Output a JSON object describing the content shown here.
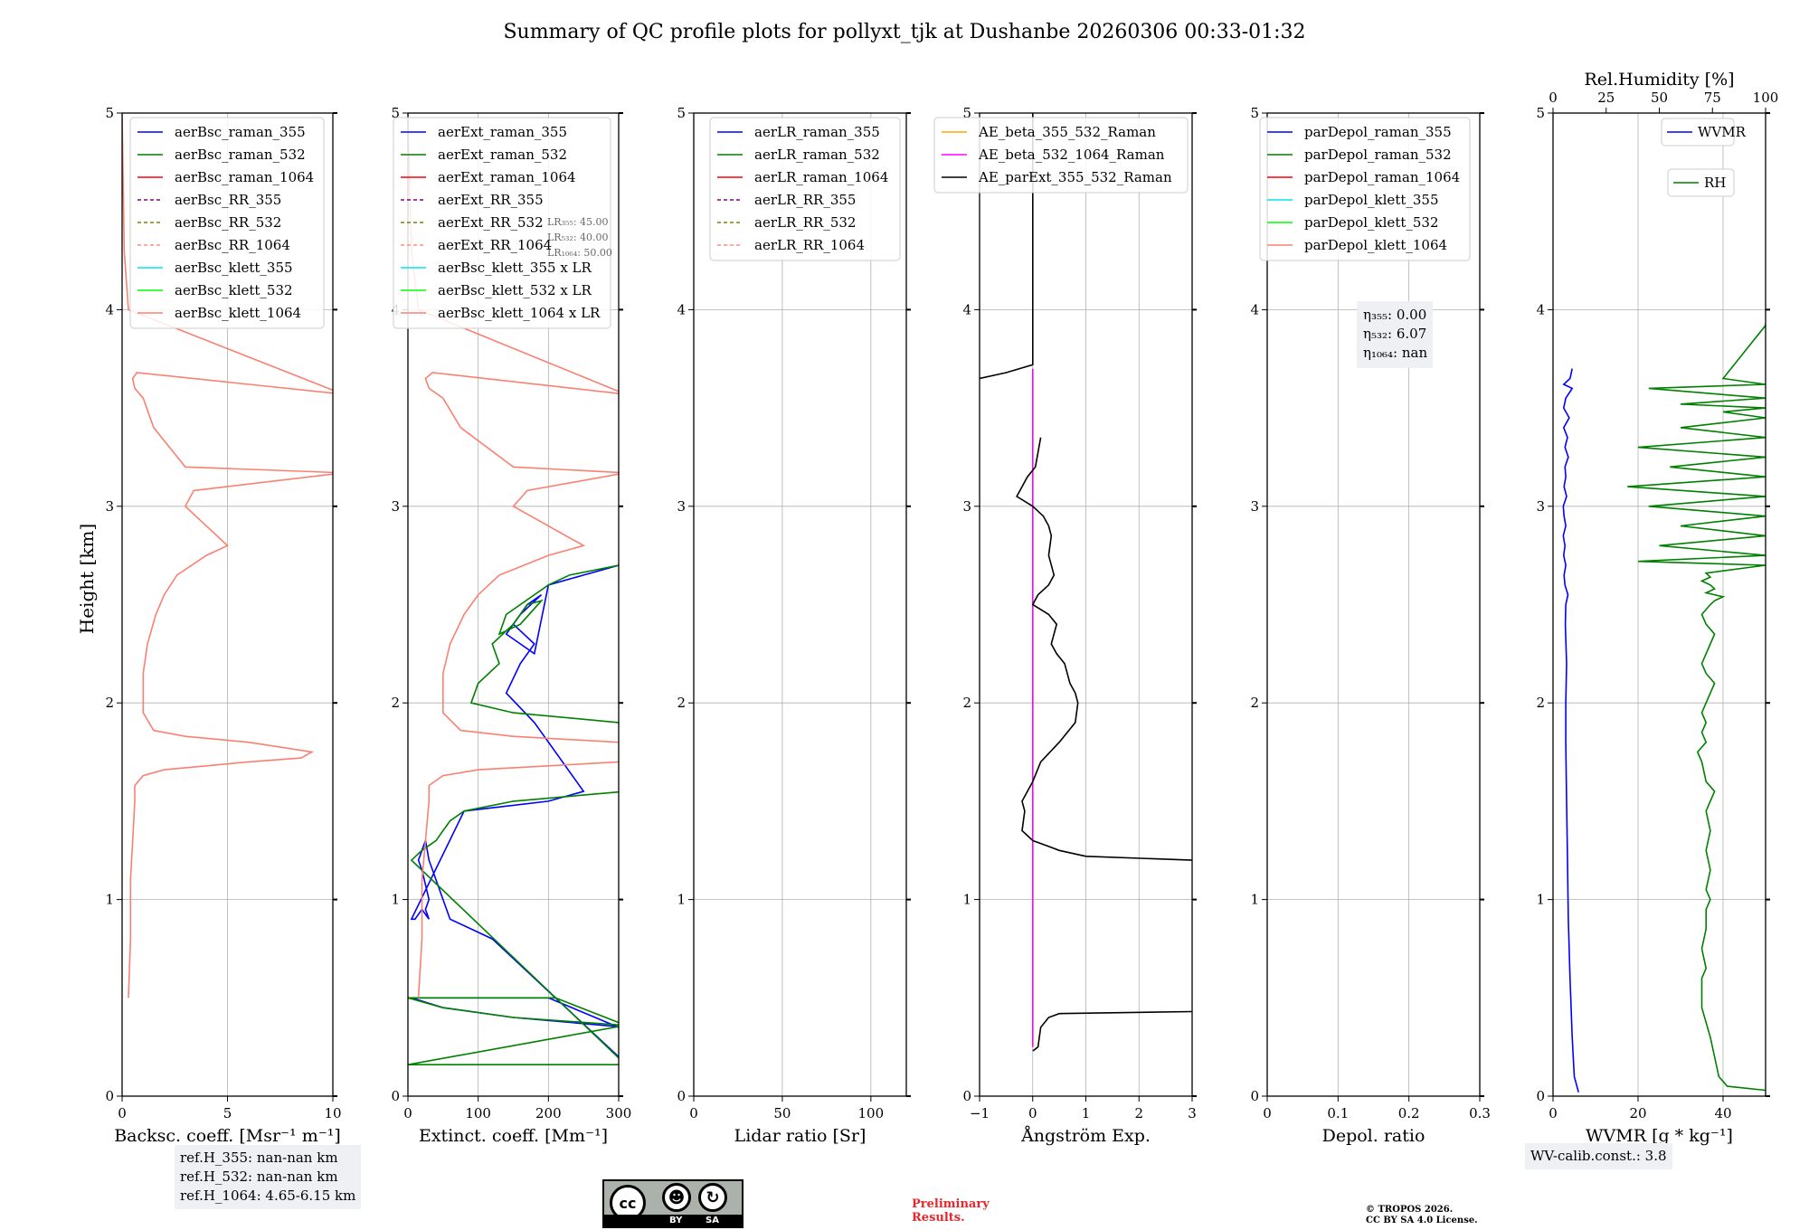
{
  "figure": {
    "title": "Summary of QC profile plots for pollyxt_tjk at Dushanbe 20260306 00:33-01:32",
    "ylabel": "Height [km]"
  },
  "chart_data": [
    {
      "id": "bsc",
      "type": "line",
      "xlabel": "Backsc. coeff. [Msr⁻¹ m⁻¹]",
      "xlim": [
        0,
        10
      ],
      "xticks": [
        0,
        5,
        10
      ],
      "ylim": [
        0,
        5
      ],
      "yticks": [
        0,
        1,
        2,
        3,
        4,
        5
      ],
      "legend": [
        "aerBsc_raman_355",
        "aerBsc_raman_532",
        "aerBsc_raman_1064",
        "aerBsc_RR_355",
        "aerBsc_RR_532",
        "aerBsc_RR_1064",
        "aerBsc_klett_355",
        "aerBsc_klett_532",
        "aerBsc_klett_1064"
      ],
      "legend_colors": [
        "#0000ff",
        "#008000",
        "#ff0000",
        "#800080",
        "#808000",
        "#ff8c8c",
        "#00e5ee",
        "#00ff00",
        "#fa8072"
      ],
      "legend_dashed": [
        false,
        false,
        false,
        true,
        true,
        true,
        false,
        false,
        false
      ],
      "series": [
        {
          "name": "aerBsc_klett_1064",
          "color": "#fa8072",
          "x": [
            0.3,
            0.4,
            0.4,
            0.5,
            0.6,
            0.6,
            1.0,
            2.0,
            4.0,
            6.0,
            8.5,
            9.0,
            6.0,
            3.0,
            1.5,
            1.0,
            1.0,
            1.2,
            1.6,
            2.0,
            2.6,
            4.0,
            5.0,
            3.0,
            3.4,
            10.5,
            3.0,
            1.5,
            1.0,
            0.6,
            0.5,
            0.7,
            10.5,
            0.3,
            0.1,
            0.0
          ],
          "y": [
            0.5,
            0.8,
            1.1,
            1.3,
            1.5,
            1.58,
            1.63,
            1.66,
            1.68,
            1.7,
            1.72,
            1.75,
            1.8,
            1.83,
            1.86,
            1.95,
            2.15,
            2.3,
            2.45,
            2.55,
            2.65,
            2.75,
            2.8,
            3.0,
            3.08,
            3.17,
            3.2,
            3.4,
            3.55,
            3.6,
            3.65,
            3.68,
            3.57,
            4.0,
            4.3,
            5.0
          ]
        }
      ]
    },
    {
      "id": "ext",
      "type": "line",
      "xlabel": "Extinct. coeff. [Mm⁻¹]",
      "xlim": [
        0,
        300
      ],
      "xticks": [
        0,
        100,
        200,
        300
      ],
      "ylim": [
        0,
        5
      ],
      "yticks": [
        0,
        1,
        2,
        3,
        4,
        5
      ],
      "legend": [
        "aerExt_raman_355",
        "aerExt_raman_532",
        "aerExt_raman_1064",
        "aerExt_RR_355",
        "aerExt_RR_532",
        "aerExt_RR_1064",
        "aerBsc_klett_355 x LR",
        "aerBsc_klett_532 x LR",
        "aerBsc_klett_1064 x LR"
      ],
      "legend_colors": [
        "#0000ff",
        "#008000",
        "#ff0000",
        "#800080",
        "#808000",
        "#ff8c8c",
        "#00e5ee",
        "#00ff00",
        "#fa8072"
      ],
      "legend_dashed": [
        false,
        false,
        false,
        true,
        true,
        true,
        false,
        false,
        false
      ],
      "lr_labels": [
        "LR₃₅₅: 45.00",
        "LR₅₃₂: 40.00",
        "LR₁₀₆₄: 50.00"
      ],
      "series": [
        {
          "name": "aerExt_raman_355",
          "color": "#0000ff",
          "x": [
            310,
            150,
            50,
            5,
            200,
            300,
            310,
            300,
            120,
            60,
            50,
            40,
            30,
            25,
            20,
            15,
            20,
            30,
            25,
            30,
            20,
            10,
            5,
            80,
            200,
            250,
            180,
            140,
            160,
            180,
            150,
            170,
            190,
            160,
            140,
            180,
            200,
            250,
            300,
            310
          ],
          "x_note": "clipped at axis limit",
          "y": [
            0.35,
            0.4,
            0.45,
            0.5,
            0.5,
            0.35,
            0.16,
            0.2,
            0.8,
            0.9,
            1.0,
            1.1,
            1.2,
            1.3,
            1.25,
            1.2,
            1.15,
            1.0,
            0.95,
            0.9,
            0.95,
            0.9,
            0.9,
            1.45,
            1.5,
            1.55,
            1.9,
            2.05,
            2.2,
            2.3,
            2.4,
            2.5,
            2.55,
            2.45,
            2.35,
            2.25,
            2.6,
            2.65,
            2.7,
            2.75
          ]
        },
        {
          "name": "aerExt_raman_532",
          "color": "#008000",
          "x": [
            310,
            150,
            50,
            0,
            210,
            310,
            0,
            310,
            5,
            20,
            40,
            50,
            60,
            80,
            150,
            310,
            300,
            150,
            90,
            100,
            130,
            120,
            150,
            170,
            190,
            160,
            130,
            140,
            200,
            230,
            300
          ],
          "y": [
            0.36,
            0.4,
            0.45,
            0.5,
            0.5,
            0.36,
            0.16,
            0.16,
            1.2,
            1.25,
            1.3,
            1.35,
            1.4,
            1.45,
            1.5,
            1.55,
            1.9,
            1.95,
            2.0,
            2.1,
            2.2,
            2.3,
            2.4,
            2.5,
            2.52,
            2.4,
            2.35,
            2.45,
            2.6,
            2.65,
            2.7
          ]
        },
        {
          "name": "aerBsc_klett_1064 x LR",
          "color": "#fa8072",
          "x": [
            15,
            20,
            20,
            25,
            30,
            30,
            50,
            100,
            200,
            300,
            310,
            310,
            300,
            150,
            75,
            50,
            50,
            60,
            80,
            100,
            130,
            200,
            250,
            150,
            170,
            310,
            150,
            75,
            50,
            30,
            25,
            35,
            310,
            15,
            5,
            0
          ],
          "y": [
            0.5,
            0.8,
            1.1,
            1.3,
            1.5,
            1.58,
            1.63,
            1.66,
            1.68,
            1.7,
            1.72,
            1.75,
            1.8,
            1.83,
            1.86,
            1.95,
            2.15,
            2.3,
            2.45,
            2.55,
            2.65,
            2.75,
            2.8,
            3.0,
            3.08,
            3.17,
            3.2,
            3.4,
            3.55,
            3.6,
            3.65,
            3.68,
            3.57,
            4.0,
            4.3,
            5.0
          ]
        }
      ]
    },
    {
      "id": "lr",
      "type": "line",
      "xlabel": "Lidar ratio [Sr]",
      "xlim": [
        0,
        120
      ],
      "xticks": [
        0,
        50,
        100
      ],
      "ylim": [
        0,
        5
      ],
      "yticks": [
        0,
        1,
        2,
        3,
        4,
        5
      ],
      "legend": [
        "aerLR_raman_355",
        "aerLR_raman_532",
        "aerLR_raman_1064",
        "aerLR_RR_355",
        "aerLR_RR_532",
        "aerLR_RR_1064"
      ],
      "legend_colors": [
        "#0000ff",
        "#008000",
        "#ff0000",
        "#800080",
        "#808000",
        "#ff8c8c"
      ],
      "legend_dashed": [
        false,
        false,
        false,
        true,
        true,
        true
      ],
      "series": []
    },
    {
      "id": "ae",
      "type": "line",
      "xlabel": "Ångström Exp.",
      "xlim": [
        -1,
        3
      ],
      "xticks": [
        -1,
        0,
        1,
        2,
        3
      ],
      "ylim": [
        0,
        5
      ],
      "yticks": [
        0,
        1,
        2,
        3,
        4,
        5
      ],
      "legend": [
        "AE_beta_355_532_Raman",
        "AE_beta_532_1064_Raman",
        "AE_parExt_355_532_Raman"
      ],
      "legend_colors": [
        "#ffa500",
        "#ff00ff",
        "#000000"
      ],
      "legend_dashed": [
        false,
        false,
        false
      ],
      "series": [
        {
          "name": "AE_beta_532_1064_Raman",
          "color": "#ff00ff",
          "x": [
            0.0,
            0.0
          ],
          "y": [
            0.25,
            3.7
          ]
        },
        {
          "name": "AE_parExt_355_532_Raman_low",
          "color": "#000000",
          "x": [
            0.0,
            0.1,
            0.15,
            0.3,
            0.5,
            3.0
          ],
          "y": [
            0.23,
            0.25,
            0.35,
            0.4,
            0.42,
            0.43
          ]
        },
        {
          "name": "AE_parExt_355_532_Raman",
          "color": "#000000",
          "x": [
            3.0,
            1.0,
            0.5,
            0.3,
            0.0,
            -0.2,
            -0.15,
            -0.2,
            -0.1,
            0.0,
            0.15,
            0.5,
            0.8,
            0.85,
            0.8,
            0.7,
            0.6,
            0.45,
            0.35,
            0.45,
            0.3,
            0.0,
            0.1,
            0.3,
            0.4,
            0.3,
            0.35,
            0.3,
            0.2,
            0.0,
            -0.3,
            -0.2,
            -0.1,
            0.05,
            0.15
          ],
          "y": [
            1.2,
            1.22,
            1.25,
            1.27,
            1.3,
            1.35,
            1.45,
            1.5,
            1.55,
            1.6,
            1.7,
            1.8,
            1.9,
            2.0,
            2.05,
            2.1,
            2.2,
            2.25,
            2.3,
            2.4,
            2.45,
            2.5,
            2.55,
            2.6,
            2.65,
            2.75,
            2.85,
            2.9,
            2.95,
            3.0,
            3.05,
            3.1,
            3.15,
            3.2,
            3.35
          ]
        },
        {
          "name": "AE_parExt_355_532_Raman_top",
          "color": "#000000",
          "x": [
            -1.0,
            -0.5,
            0.0,
            0.0
          ],
          "y": [
            3.65,
            3.68,
            3.72,
            5.0
          ]
        }
      ]
    },
    {
      "id": "depol",
      "type": "line",
      "xlabel": "Depol. ratio",
      "xlim": [
        0,
        0.3
      ],
      "xticks": [
        0.0,
        0.1,
        0.2,
        0.3
      ],
      "ylim": [
        0,
        5
      ],
      "yticks": [
        0,
        1,
        2,
        3,
        4,
        5
      ],
      "legend": [
        "parDepol_raman_355",
        "parDepol_raman_532",
        "parDepol_raman_1064",
        "parDepol_klett_355",
        "parDepol_klett_532",
        "parDepol_klett_1064"
      ],
      "legend_colors": [
        "#0000ff",
        "#008000",
        "#ff0000",
        "#00e5ee",
        "#00ff00",
        "#fa8072"
      ],
      "legend_dashed": [
        false,
        false,
        false,
        false,
        false,
        false
      ],
      "eta_labels": [
        "η₃₅₅: 0.00",
        "η₅₃₂: 6.07",
        "η₁₀₆₄: nan"
      ],
      "series": []
    },
    {
      "id": "wv",
      "type": "line",
      "xlabel": "WVMR [g * kg⁻¹]",
      "xlim": [
        0,
        50
      ],
      "xticks": [
        0,
        20,
        40
      ],
      "x2label": "Rel.Humidity [%]",
      "x2lim": [
        0,
        100
      ],
      "x2ticks": [
        0,
        25,
        50,
        75,
        100
      ],
      "ylim": [
        0,
        5
      ],
      "yticks": [
        0,
        1,
        2,
        3,
        4,
        5
      ],
      "legend": [
        "WVMR",
        "RH"
      ],
      "legend_colors": [
        "#0000ff",
        "#008000"
      ],
      "series": [
        {
          "name": "WVMR",
          "color": "#0000ff",
          "x": [
            6.0,
            5.0,
            4.5,
            4.0,
            3.6,
            3.4,
            3.2,
            3.0,
            3.0,
            3.2,
            2.9,
            3.0,
            3.5,
            2.8,
            2.6,
            3.0,
            2.5,
            2.8,
            2.4,
            3.0,
            2.6,
            2.4,
            3.2,
            2.6,
            3.0,
            2.8,
            3.6,
            2.8,
            3.4,
            2.5,
            3.8,
            2.5,
            3.0,
            4.5,
            2.5,
            4.0,
            4.5
          ],
          "y": [
            0.02,
            0.1,
            0.3,
            0.6,
            0.9,
            1.2,
            1.5,
            1.8,
            2.0,
            2.2,
            2.4,
            2.5,
            2.55,
            2.6,
            2.65,
            2.7,
            2.75,
            2.8,
            2.85,
            2.9,
            2.95,
            3.0,
            3.05,
            3.1,
            3.15,
            3.2,
            3.25,
            3.3,
            3.35,
            3.4,
            3.45,
            3.5,
            3.55,
            3.6,
            3.62,
            3.65,
            3.7
          ]
        },
        {
          "name": "RH",
          "color": "#008000",
          "x2": [
            100,
            82,
            78,
            76,
            74,
            70,
            70,
            72,
            70,
            72,
            72,
            74,
            72,
            74,
            72,
            74,
            72,
            74,
            76,
            72,
            70,
            68,
            72,
            70,
            72,
            70,
            72,
            74,
            76,
            72,
            70,
            72,
            74,
            76,
            72,
            70,
            74,
            76,
            80,
            72,
            76,
            74,
            70,
            74,
            72,
            100,
            40,
            100,
            50,
            100,
            60,
            100,
            45,
            100,
            35,
            100,
            55,
            100,
            40,
            100,
            60,
            100,
            80,
            100,
            60,
            100,
            45,
            100,
            80,
            100,
            100
          ],
          "y": [
            0.03,
            0.05,
            0.1,
            0.2,
            0.3,
            0.45,
            0.6,
            0.65,
            0.75,
            0.85,
            0.95,
            1.0,
            1.05,
            1.15,
            1.25,
            1.35,
            1.45,
            1.5,
            1.55,
            1.6,
            1.7,
            1.75,
            1.8,
            1.85,
            1.9,
            1.95,
            2.0,
            2.05,
            2.1,
            2.15,
            2.2,
            2.25,
            2.3,
            2.35,
            2.4,
            2.45,
            2.5,
            2.52,
            2.54,
            2.56,
            2.58,
            2.6,
            2.62,
            2.64,
            2.66,
            2.7,
            2.72,
            2.75,
            2.8,
            2.85,
            2.9,
            2.95,
            3.0,
            3.05,
            3.1,
            3.15,
            3.2,
            3.25,
            3.3,
            3.35,
            3.4,
            3.45,
            3.48,
            3.5,
            3.52,
            3.55,
            3.6,
            3.62,
            3.65,
            3.92,
            3.93
          ]
        }
      ]
    }
  ],
  "info": {
    "ref_lines": [
      "ref.H_355: nan-nan km",
      "ref.H_532: nan-nan km",
      "ref.H_1064: 4.65-6.15 km"
    ],
    "wv_calib": "WV-calib.const.: 3.8",
    "preliminary": [
      "Preliminary",
      "Results."
    ],
    "copyright": [
      "© TROPOS 2026.",
      "CC BY SA 4.0 License."
    ],
    "license_badge": [
      "cc",
      "BY",
      "SA"
    ]
  }
}
